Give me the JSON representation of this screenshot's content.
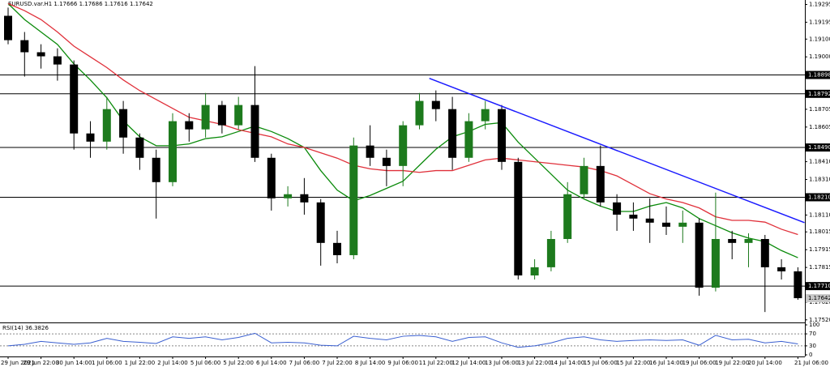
{
  "chart_data": {
    "type": "candlestick",
    "title": "EURUSD.var.H1  1.17666 1.17686 1.17616 1.17642",
    "categories": [
      "29 Jun 2021",
      null,
      "29 Jun 22:00",
      null,
      "30 Jun 14:00",
      null,
      "1 Jul 06:00",
      null,
      "1 Jul 22:00",
      null,
      "2 Jul 14:00",
      null,
      "5 Jul 06:00",
      null,
      "5 Jul 22:00",
      null,
      "6 Jul 14:00",
      null,
      "7 Jul 06:00",
      null,
      "7 Jul 22:00",
      null,
      "8 Jul 14:00",
      null,
      "9 Jul 06:00",
      null,
      "11 Jul 22:00",
      null,
      "12 Jul 14:00",
      null,
      "13 Jul 06:00",
      null,
      "13 Jul 22:00",
      null,
      "14 Jul 14:00",
      null,
      "15 Jul 06:00",
      null,
      "15 Jul 22:00",
      null,
      "16 Jul 14:00",
      null,
      "19 Jul 06:00",
      null,
      "19 Jul 22:00",
      null,
      "20 Jul 14:00",
      null,
      "21 Jul 06:00"
    ],
    "open": [
      1.19231,
      1.19094,
      1.19026,
      1.19003,
      1.18957,
      1.18569,
      1.18523,
      1.18706,
      1.18546,
      1.18432,
      1.18295,
      1.18638,
      1.18592,
      1.18729,
      1.18615,
      1.18729,
      1.18432,
      1.18204,
      1.18227,
      1.18181,
      1.17953,
      1.17884,
      1.18501,
      1.18432,
      1.18386,
      1.18615,
      1.18752,
      1.18706,
      1.18432,
      1.18638,
      1.18706,
      1.18409,
      1.1777,
      1.17816,
      1.17975,
      1.18227,
      1.18386,
      1.18181,
      1.18112,
      1.1809,
      1.18067,
      1.18044,
      1.18067,
      1.17701,
      1.17975,
      1.17953,
      1.17975,
      1.17816,
      1.17793
    ],
    "high": [
      1.19277,
      1.1914,
      1.19071,
      1.19048,
      1.1898,
      1.18638,
      1.18775,
      1.18752,
      1.18569,
      1.18478,
      1.18683,
      1.18683,
      1.18797,
      1.18752,
      1.18775,
      1.18948,
      1.18455,
      1.18272,
      1.18318,
      1.182,
      1.18021,
      1.18546,
      1.18615,
      1.18478,
      1.18638,
      1.18797,
      1.18811,
      1.18775,
      1.18683,
      1.18752,
      1.18729,
      1.18432,
      1.17861,
      1.18021,
      1.18295,
      1.18432,
      1.18501,
      1.18227,
      1.18181,
      1.18204,
      1.18158,
      1.18135,
      1.1809,
      1.18236,
      1.18021,
      1.18007,
      1.17998,
      1.17861,
      1.17816
    ],
    "low": [
      1.19071,
      1.18889,
      1.18934,
      1.18866,
      1.18478,
      1.18432,
      1.18478,
      1.18455,
      1.18364,
      1.1809,
      1.18272,
      1.18523,
      1.18546,
      1.18569,
      1.18592,
      1.18409,
      1.18135,
      1.18158,
      1.18112,
      1.17825,
      1.17838,
      1.17861,
      1.18386,
      1.18272,
      1.18272,
      1.18592,
      1.18638,
      1.18364,
      1.18409,
      1.18592,
      1.18364,
      1.17747,
      1.17747,
      1.17793,
      1.17953,
      1.18204,
      1.18158,
      1.18021,
      1.18021,
      1.17953,
      1.17998,
      1.17953,
      1.17656,
      1.1768,
      1.17861,
      1.17816,
      1.17564,
      1.17747,
      1.17633
    ],
    "close": [
      1.19094,
      1.19026,
      1.19003,
      1.18957,
      1.18569,
      1.18523,
      1.18706,
      1.18546,
      1.18432,
      1.18295,
      1.18638,
      1.18592,
      1.18729,
      1.18615,
      1.18729,
      1.18432,
      1.18204,
      1.18227,
      1.18181,
      1.17953,
      1.17884,
      1.18501,
      1.18432,
      1.18386,
      1.18615,
      1.18752,
      1.18706,
      1.18432,
      1.18638,
      1.18706,
      1.18409,
      1.1777,
      1.17816,
      1.17975,
      1.18227,
      1.18386,
      1.18181,
      1.18112,
      1.1809,
      1.18067,
      1.18044,
      1.18067,
      1.17701,
      1.17975,
      1.17953,
      1.17975,
      1.17816,
      1.17793,
      1.17642
    ],
    "up_color": "#1d7a1d",
    "down_color": "#000000",
    "ma": [
      {
        "color": "#0a8a0a",
        "values": [
          1.193,
          1.1921,
          1.1914,
          1.1907,
          1.1896,
          1.1887,
          1.1877,
          1.1864,
          1.1855,
          1.185,
          1.185,
          1.1851,
          1.1854,
          1.1855,
          1.1858,
          1.1861,
          1.1858,
          1.1854,
          1.1849,
          1.1836,
          1.1825,
          1.1819,
          1.1822,
          1.1826,
          1.183,
          1.1839,
          1.1848,
          1.1855,
          1.1858,
          1.1862,
          1.1863,
          1.1852,
          1.1843,
          1.1834,
          1.1825,
          1.182,
          1.1816,
          1.1813,
          1.1813,
          1.1816,
          1.1818,
          1.1815,
          1.1809,
          1.1805,
          1.1801,
          1.1798,
          1.1796,
          1.1791,
          1.1787
        ]
      },
      {
        "color": "#e0303a",
        "values": [
          1.193,
          1.1926,
          1.1921,
          1.1914,
          1.1906,
          1.19,
          1.1894,
          1.1887,
          1.1881,
          1.1876,
          1.1871,
          1.1866,
          1.1864,
          1.1862,
          1.1859,
          1.1857,
          1.1855,
          1.1851,
          1.1849,
          1.1846,
          1.1843,
          1.1839,
          1.1837,
          1.1836,
          1.1836,
          1.1835,
          1.1836,
          1.1836,
          1.1839,
          1.1842,
          1.1843,
          1.1842,
          1.1841,
          1.184,
          1.1839,
          1.1838,
          1.1836,
          1.1833,
          1.1828,
          1.1823,
          1.182,
          1.1818,
          1.1815,
          1.181,
          1.1808,
          1.1808,
          1.1807,
          1.1803,
          1.18
        ]
      }
    ],
    "trendline": {
      "color": "#1a1aff",
      "x": [
        25.6,
        48.4
      ],
      "values": [
        1.18879,
        1.18067
      ]
    },
    "levels": [
      {
        "value": 1.18898,
        "label": "1.18898"
      },
      {
        "value": 1.18792,
        "label": "1.18792"
      },
      {
        "value": 1.1849,
        "label": "1.18490"
      },
      {
        "value": 1.1821,
        "label": "1.18210"
      },
      {
        "value": 1.1771,
        "label": "1.17710"
      }
    ],
    "current_price": {
      "value": 1.17642,
      "label": "1.17642"
    },
    "ylim": [
      1.1751,
      1.1932
    ],
    "yticks": [
      {
        "value": 1.19295,
        "label": "1.19295"
      },
      {
        "value": 1.19195,
        "label": "1.19195"
      },
      {
        "value": 1.191,
        "label": "1.19100"
      },
      {
        "value": 1.19,
        "label": "1.19000"
      },
      {
        "value": 1.18705,
        "label": "1.18705"
      },
      {
        "value": 1.18605,
        "label": "1.18605"
      },
      {
        "value": 1.1841,
        "label": "1.18410"
      },
      {
        "value": 1.1831,
        "label": "1.18310"
      },
      {
        "value": 1.1811,
        "label": "1.18110"
      },
      {
        "value": 1.18015,
        "label": "1.18015"
      },
      {
        "value": 1.17915,
        "label": "1.17915"
      },
      {
        "value": 1.17815,
        "label": "1.17815"
      },
      {
        "value": 1.1762,
        "label": "1.17620"
      },
      {
        "value": 1.1752,
        "label": "1.17520"
      }
    ],
    "rsi": {
      "label": "RSI(14) 36.3826",
      "color": "#3a5fd0",
      "values": [
        30,
        35,
        45,
        40,
        35,
        40,
        55,
        45,
        42,
        38,
        60,
        55,
        60,
        50,
        58,
        72,
        40,
        42,
        40,
        32,
        30,
        62,
        55,
        50,
        62,
        65,
        60,
        45,
        58,
        60,
        40,
        25,
        30,
        40,
        55,
        60,
        50,
        45,
        48,
        50,
        48,
        50,
        32,
        65,
        50,
        52,
        40,
        45,
        36.3826
      ],
      "ylim": [
        0,
        100
      ],
      "yticks": [
        100,
        70,
        30,
        0
      ],
      "levels": [
        70,
        30
      ]
    }
  }
}
